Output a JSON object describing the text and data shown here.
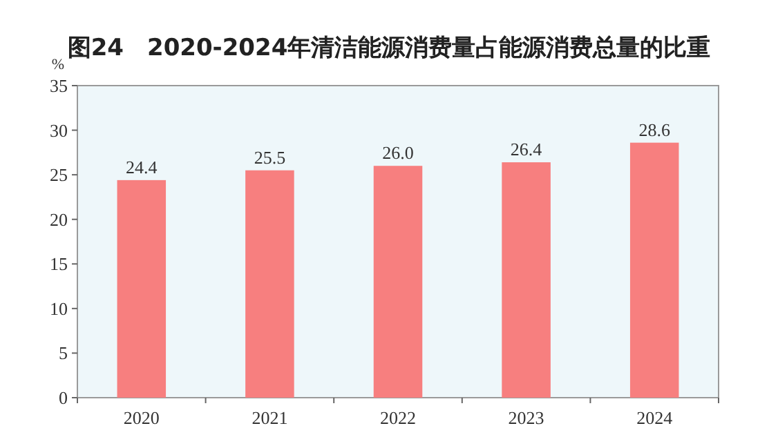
{
  "chart_data": {
    "type": "bar",
    "title": "图24　2020-2024年清洁能源消费量占能源消费总量的比重",
    "ylabel": "%",
    "categories": [
      "2020",
      "2021",
      "2022",
      "2023",
      "2024"
    ],
    "values": [
      24.4,
      25.5,
      26.0,
      26.4,
      28.6
    ],
    "value_labels": [
      "24.4",
      "25.5",
      "26.0",
      "26.4",
      "28.6"
    ],
    "color": "#f77f7f",
    "ylim": [
      0,
      35
    ],
    "yticks": [
      0,
      5,
      10,
      15,
      20,
      25,
      30,
      35
    ],
    "grid": false
  }
}
